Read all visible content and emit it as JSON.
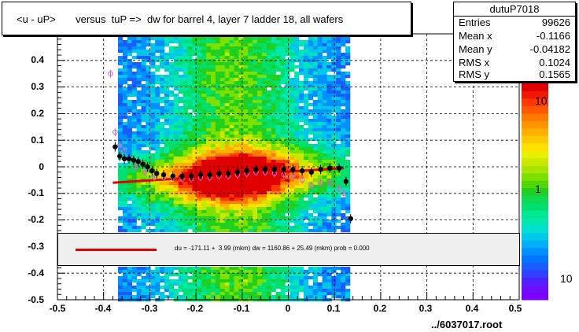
{
  "title": "<u - uP>       versus  tuP =>  dw for barrel 4, layer 7 ladder 18, all wafers",
  "stats": {
    "name": "dutuP7018",
    "rows": [
      {
        "label": "Entries",
        "value": "99626"
      },
      {
        "label": "Mean x",
        "value": "-0.1166"
      },
      {
        "label": "Mean y",
        "value": "-0.04182"
      },
      {
        "label": "RMS x",
        "value": "0.1024"
      },
      {
        "label": "RMS y",
        "value": "0.1565"
      }
    ]
  },
  "fit_text": "du = -171.11 +  3.99 (mkm) dw = 1160.86 + 25.49 (mkm) prob = 0.000",
  "footer": "../6037017.root",
  "colorbar": {
    "labels": [
      "10",
      "1",
      "10"
    ]
  },
  "colors": {
    "fit_line": "#e00000",
    "profile_black": "#000000",
    "profile_pink": "#cc66cc"
  },
  "chart_data": {
    "type": "heatmap",
    "xlim": [
      -0.5,
      0.5
    ],
    "ylim": [
      -0.5,
      0.5
    ],
    "x_ticks": [
      "-0.5",
      "-0.4",
      "-0.3",
      "-0.2",
      "-0.1",
      "0",
      "0.1",
      "0.2",
      "0.3",
      "0.4",
      "0.5"
    ],
    "y_ticks": [
      "-0.5",
      "-0.4",
      "-0.3",
      "-0.2",
      "-0.1",
      "0",
      "0.1",
      "0.2",
      "0.3",
      "0.4"
    ],
    "grid": true,
    "fit_line": {
      "x": [
        -0.38,
        0.12
      ],
      "y": [
        -0.06,
        -0.005
      ]
    },
    "series": [
      {
        "marker": "filled-circle",
        "x": [
          -0.375,
          -0.365,
          -0.355,
          -0.345,
          -0.335,
          -0.325,
          -0.315,
          -0.305,
          -0.295,
          -0.285,
          -0.27,
          -0.25,
          -0.23,
          -0.21,
          -0.19,
          -0.17,
          -0.15,
          -0.13,
          -0.11,
          -0.09,
          -0.07,
          -0.05,
          -0.03,
          -0.01,
          0.01,
          0.03,
          0.05,
          0.07,
          0.09,
          0.11,
          0.125,
          0.135
        ],
        "y": [
          0.075,
          0.04,
          0.03,
          0.03,
          0.025,
          0.02,
          0.01,
          0.0,
          -0.015,
          -0.025,
          -0.03,
          -0.035,
          -0.035,
          -0.035,
          -0.03,
          -0.03,
          -0.025,
          -0.025,
          -0.02,
          -0.015,
          -0.01,
          -0.01,
          -0.01,
          -0.01,
          -0.01,
          -0.015,
          -0.02,
          -0.01,
          -0.005,
          -0.005,
          -0.055,
          -0.195
        ]
      },
      {
        "marker": "open-circle",
        "x": [
          -0.385,
          -0.375,
          -0.365,
          -0.355,
          -0.345,
          -0.33,
          -0.31,
          -0.29,
          -0.27,
          -0.25,
          -0.23,
          -0.21,
          -0.19,
          -0.17,
          -0.15,
          -0.13,
          -0.11,
          -0.09,
          -0.07,
          -0.05,
          -0.03,
          -0.01,
          0.01,
          0.03,
          0.05,
          0.07,
          0.09,
          0.11,
          0.12
        ],
        "y": [
          0.35,
          0.13,
          0.08,
          0.06,
          0.03,
          0.0,
          -0.02,
          -0.04,
          -0.04,
          -0.04,
          -0.045,
          -0.045,
          -0.04,
          -0.04,
          -0.035,
          -0.035,
          -0.03,
          -0.025,
          -0.02,
          -0.02,
          -0.025,
          -0.03,
          -0.035,
          -0.05,
          -0.07,
          -0.06,
          -0.06,
          -0.08,
          -0.1
        ]
      }
    ]
  }
}
